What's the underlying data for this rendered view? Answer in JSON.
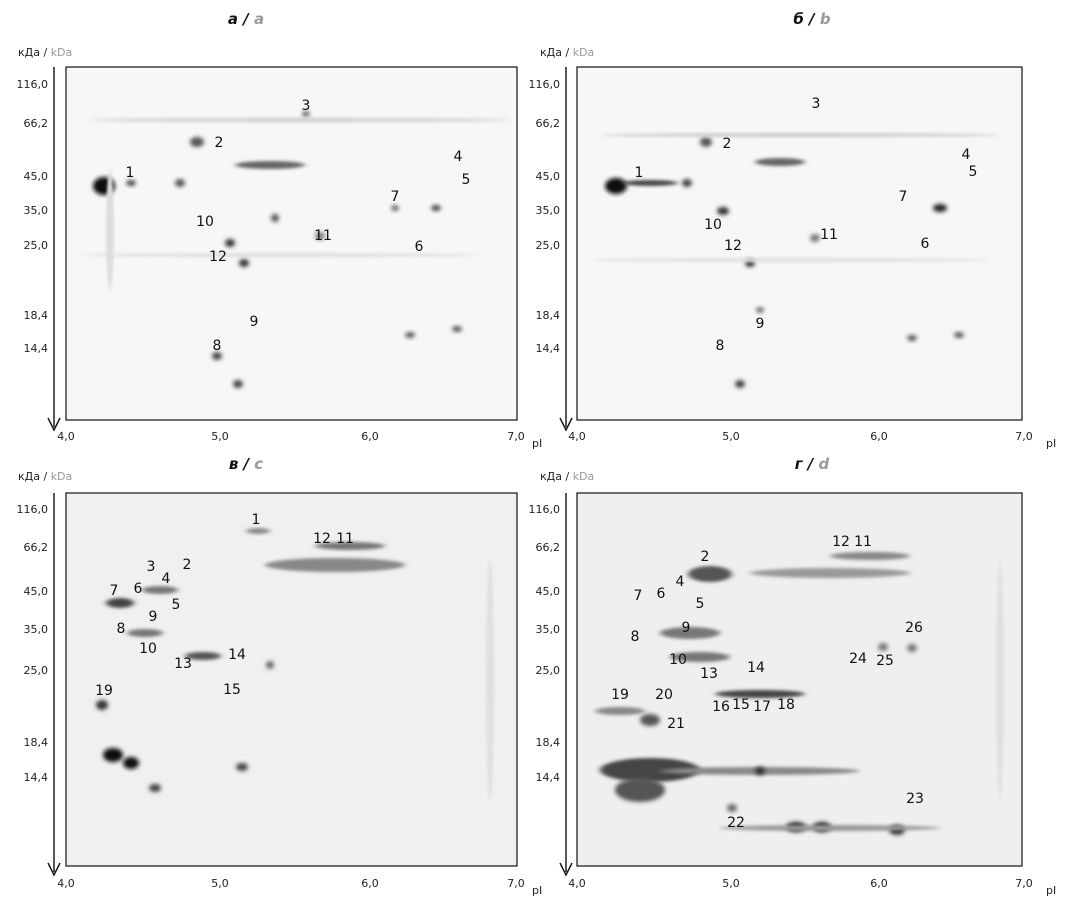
{
  "y_axis_title_ru": "кДа",
  "y_axis_title_sep": " / ",
  "y_axis_title_en": "kDa",
  "x_axis_title": "pI",
  "x_ticks": [
    "4,0",
    "5,0",
    "6,0",
    "7,0"
  ],
  "panels": [
    {
      "title_ru": "а",
      "title_en": "a",
      "y_ticks": [
        "116,0",
        "66,2",
        "45,0",
        "35,0",
        "25,0",
        "18,4",
        "14,4"
      ],
      "spots": [
        "1",
        "2",
        "3",
        "4",
        "5",
        "6",
        "7",
        "8",
        "9",
        "10",
        "11",
        "12"
      ]
    },
    {
      "title_ru": "б",
      "title_en": "b",
      "y_ticks": [
        "116,0",
        "66,2",
        "45,0",
        "35,0",
        "25,0",
        "18,4",
        "14,4"
      ],
      "spots": [
        "1",
        "2",
        "3",
        "4",
        "5",
        "6",
        "7",
        "8",
        "9",
        "10",
        "11",
        "12"
      ]
    },
    {
      "title_ru": "в",
      "title_en": "c",
      "y_ticks": [
        "116,0",
        "66,2",
        "45,0",
        "35,0",
        "25,0",
        "18,4",
        "14,4"
      ],
      "spots": [
        "1",
        "2",
        "3",
        "4",
        "5",
        "6",
        "7",
        "8",
        "9",
        "10",
        "11",
        "12",
        "13",
        "14",
        "15",
        "19"
      ]
    },
    {
      "title_ru": "г",
      "title_en": "d",
      "y_ticks": [
        "116,0",
        "66,2",
        "45,0",
        "35,0",
        "25,0",
        "18,4",
        "14,4"
      ],
      "spots": [
        "2",
        "4",
        "5",
        "6",
        "7",
        "8",
        "9",
        "10",
        "11",
        "12",
        "13",
        "14",
        "15",
        "16",
        "17",
        "18",
        "19",
        "20",
        "21",
        "22",
        "23",
        "24",
        "25",
        "26"
      ]
    }
  ]
}
